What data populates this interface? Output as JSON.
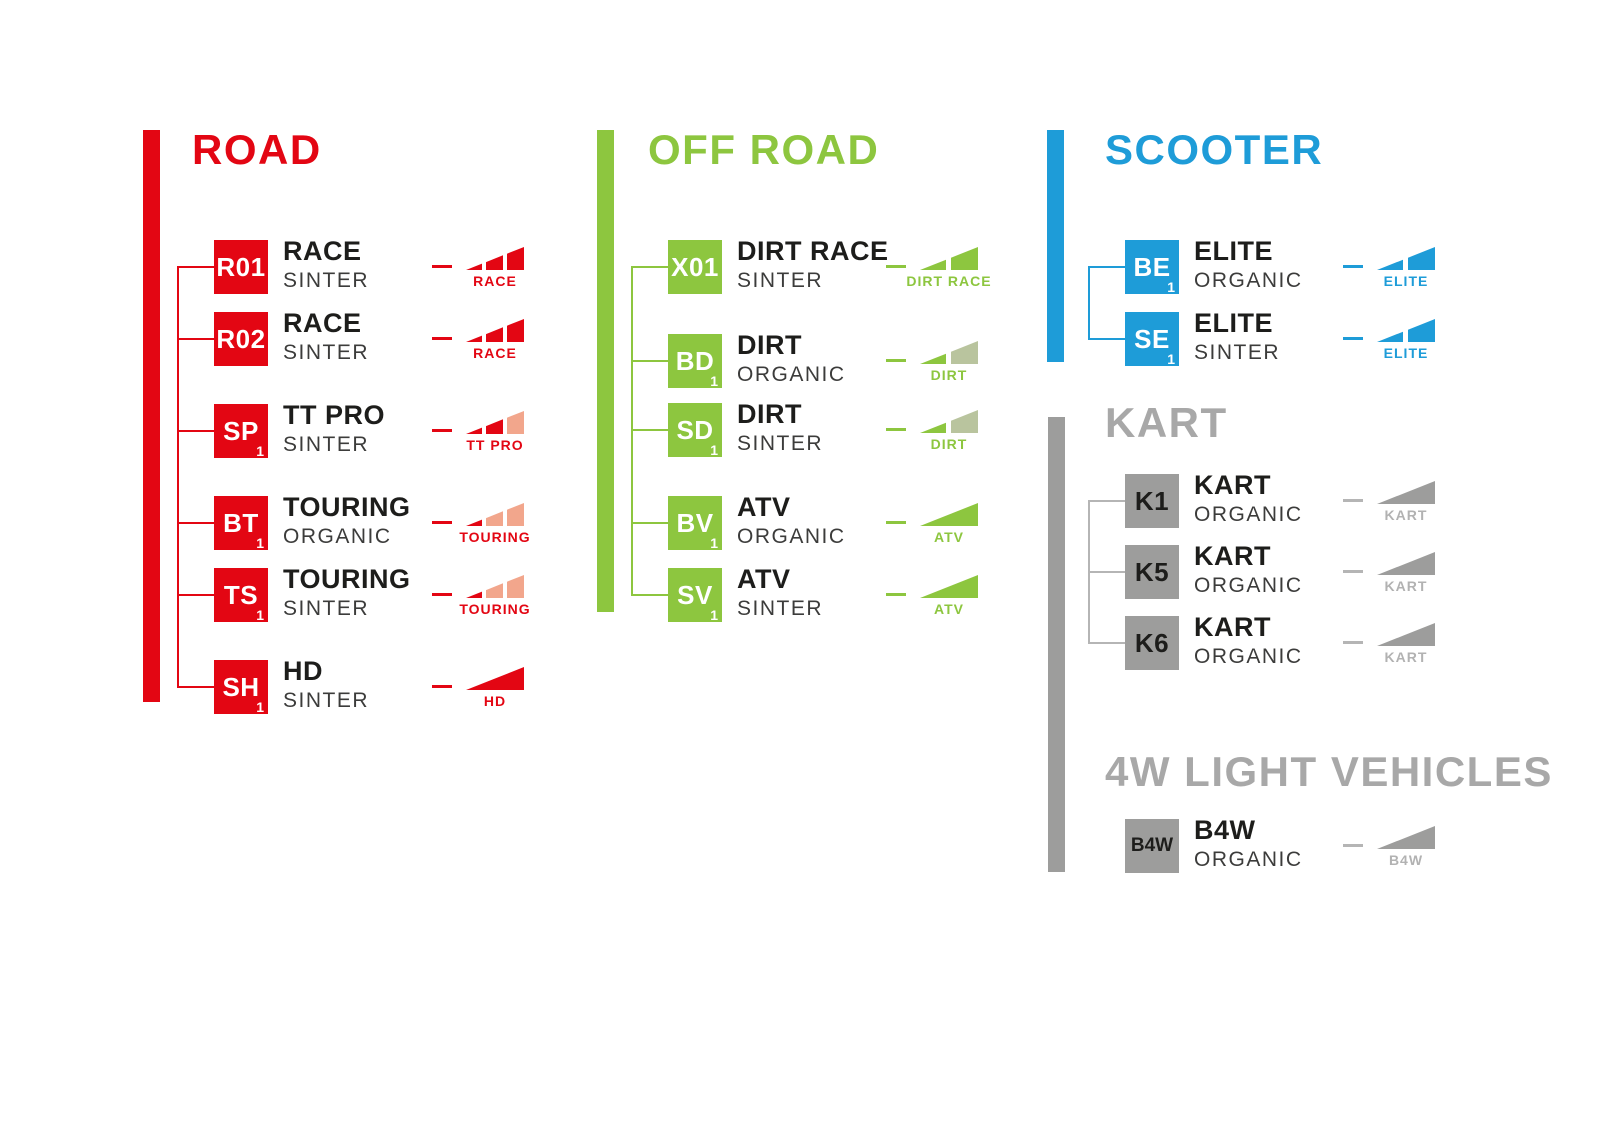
{
  "page": {
    "background": "#ffffff"
  },
  "text_colors": {
    "name": "#1d1d1b",
    "material": "#3c3c3b"
  },
  "sections": [
    {
      "id": "road",
      "title": "ROAD",
      "color": "#e30613",
      "title_color": "#e30613",
      "badge_text_color": "#ffffff",
      "line_color": "#e30613",
      "icon_label_color": "#e30613",
      "items": [
        {
          "code": "R01",
          "sub": "",
          "name": "RACE",
          "material": "SINTER",
          "icon": {
            "variant": "wedge3",
            "label": "RACE",
            "colors": [
              "#e30613",
              "#e30613",
              "#e30613"
            ]
          }
        },
        {
          "code": "R02",
          "sub": "",
          "name": "RACE",
          "material": "SINTER",
          "icon": {
            "variant": "wedge3",
            "label": "RACE",
            "colors": [
              "#e30613",
              "#e30613",
              "#e30613"
            ]
          }
        },
        {
          "code": "SP",
          "sub": "1",
          "name": "TT PRO",
          "material": "SINTER",
          "icon": {
            "variant": "wedge3",
            "label": "TT PRO",
            "colors": [
              "#e30613",
              "#e30613",
              "#f2a68c"
            ]
          }
        },
        {
          "code": "BT",
          "sub": "1",
          "name": "TOURING",
          "material": "ORGANIC",
          "icon": {
            "variant": "wedge3",
            "label": "TOURING",
            "colors": [
              "#e30613",
              "#f2a68c",
              "#f2a68c"
            ]
          }
        },
        {
          "code": "TS",
          "sub": "1",
          "name": "TOURING",
          "material": "SINTER",
          "icon": {
            "variant": "wedge3",
            "label": "TOURING",
            "colors": [
              "#e30613",
              "#f2a68c",
              "#f2a68c"
            ]
          }
        },
        {
          "code": "SH",
          "sub": "1",
          "name": "HD",
          "material": "SINTER",
          "icon": {
            "variant": "full",
            "label": "HD",
            "colors": [
              "#e30613"
            ]
          }
        }
      ]
    },
    {
      "id": "off-road",
      "title": "OFF ROAD",
      "color": "#8dc63f",
      "title_color": "#8dc63f",
      "badge_text_color": "#ffffff",
      "line_color": "#8dc63f",
      "icon_label_color": "#8dc63f",
      "items": [
        {
          "code": "X01",
          "sub": "",
          "name": "DIRT RACE",
          "material": "SINTER",
          "icon": {
            "variant": "wedge2",
            "label": "DIRT RACE",
            "colors": [
              "#8dc63f",
              "#8dc63f"
            ]
          }
        },
        {
          "code": "BD",
          "sub": "1",
          "name": "DIRT",
          "material": "ORGANIC",
          "icon": {
            "variant": "wedge2",
            "label": "DIRT",
            "colors": [
              "#8dc63f",
              "#b9c49e"
            ]
          }
        },
        {
          "code": "SD",
          "sub": "1",
          "name": "DIRT",
          "material": "SINTER",
          "icon": {
            "variant": "wedge2",
            "label": "DIRT",
            "colors": [
              "#8dc63f",
              "#b9c49e"
            ]
          }
        },
        {
          "code": "BV",
          "sub": "1",
          "name": "ATV",
          "material": "ORGANIC",
          "icon": {
            "variant": "full",
            "label": "ATV",
            "colors": [
              "#8dc63f"
            ]
          }
        },
        {
          "code": "SV",
          "sub": "1",
          "name": "ATV",
          "material": "SINTER",
          "icon": {
            "variant": "full",
            "label": "ATV",
            "colors": [
              "#8dc63f"
            ]
          }
        }
      ]
    },
    {
      "id": "scooter",
      "title": "SCOOTER",
      "color": "#1e9cd8",
      "title_color": "#1e9cd8",
      "badge_text_color": "#ffffff",
      "line_color": "#1e9cd8",
      "icon_label_color": "#1e9cd8",
      "items": [
        {
          "code": "BE",
          "sub": "1",
          "name": "ELITE",
          "material": "ORGANIC",
          "icon": {
            "variant": "wedge2",
            "label": "ELITE",
            "colors": [
              "#1e9cd8",
              "#1e9cd8"
            ]
          }
        },
        {
          "code": "SE",
          "sub": "1",
          "name": "ELITE",
          "material": "SINTER",
          "icon": {
            "variant": "wedge2",
            "label": "ELITE",
            "colors": [
              "#1e9cd8",
              "#1e9cd8"
            ]
          }
        }
      ]
    },
    {
      "id": "kart",
      "title": "KART",
      "color": "#9d9d9c",
      "title_color": "#a8a8a8",
      "badge_text_color": "#1d1d1b",
      "line_color": "#b5b5b5",
      "icon_label_color": "#b2b2b2",
      "items": [
        {
          "code": "K1",
          "sub": "",
          "name": "KART",
          "material": "ORGANIC",
          "icon": {
            "variant": "full",
            "label": "KART",
            "colors": [
              "#9d9d9c"
            ]
          }
        },
        {
          "code": "K5",
          "sub": "",
          "name": "KART",
          "material": "ORGANIC",
          "icon": {
            "variant": "full",
            "label": "KART",
            "colors": [
              "#9d9d9c"
            ]
          }
        },
        {
          "code": "K6",
          "sub": "",
          "name": "KART",
          "material": "ORGANIC",
          "icon": {
            "variant": "full",
            "label": "KART",
            "colors": [
              "#9d9d9c"
            ]
          }
        }
      ]
    },
    {
      "id": "4w-light-vehicles",
      "title": "4W LIGHT VEHICLES",
      "color": "#9d9d9c",
      "title_color": "#a8a8a8",
      "badge_text_color": "#1d1d1b",
      "line_color": "#b5b5b5",
      "icon_label_color": "#b2b2b2",
      "items": [
        {
          "code": "B4W",
          "sub": "",
          "name": "B4W",
          "material": "ORGANIC",
          "icon": {
            "variant": "full",
            "label": "B4W",
            "colors": [
              "#9d9d9c"
            ]
          }
        }
      ]
    }
  ]
}
